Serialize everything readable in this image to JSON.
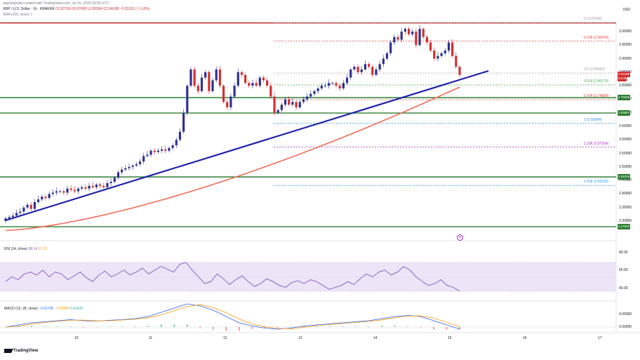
{
  "header": {
    "author_line": "aayushjindal created with TradingView.com, Jul 15, 2025 03:55 UTC",
    "symbol": "XRP / U.S. Dollar · 1h · KRAKEN",
    "ohlc": "O2.87159 H2.87430 L2.80364 C2.84188 −0.03162 (−1.10%)",
    "sma_label": "SMA (100, close)",
    "sma_value": "1",
    "currency": "USD"
  },
  "colors": {
    "up": "#2e3192",
    "down": "#d32f2f",
    "trendline": "#1e22aa",
    "sma": "#ef6c57",
    "support": "#2e7d32",
    "resistance": "#b71c1c",
    "fib": "#e53935",
    "rsi": "#7e57c2",
    "rsi_band": "#e9e0f5"
  },
  "price_axis": {
    "ticks": [
      "3.00000",
      "2.95000",
      "2.90000",
      "2.85000",
      "2.80000",
      "2.75000",
      "2.70000",
      "2.65000",
      "2.60000",
      "2.55000",
      "2.50000",
      "2.45000",
      "2.40000",
      "2.35000",
      "2.30000"
    ],
    "tags": [
      {
        "text": "2.84188",
        "color": "#d32f2f",
        "price": 2.84188
      },
      {
        "text": "04:05",
        "color": "#d32f2f",
        "price": 2.826
      },
      {
        "text": "2.75605",
        "color": "#2e7d32",
        "price": 2.75605
      },
      {
        "text": "2.69887",
        "color": "#2e7d32",
        "price": 2.69887
      },
      {
        "text": "2.46346",
        "color": "#2e7d32",
        "price": 2.46346
      },
      {
        "text": "2.27932",
        "color": "#2e7d32",
        "price": 2.27932
      }
    ]
  },
  "fib_levels": [
    {
      "label": "0 (3.03244)",
      "value": 3.03244
    },
    {
      "label": "0.236 (2.96474)",
      "value": 2.96474
    },
    {
      "label": "0.5 (2.84664)",
      "value": 2.84664
    },
    {
      "label": "0.618 (2.80279)",
      "value": 2.80279
    },
    {
      "label": "0.764 (2.74854)",
      "value": 2.74854
    },
    {
      "label": "1 (2.66084)",
      "value": 2.66084
    },
    {
      "label": "1.236 (2.57314)",
      "value": 2.57314
    },
    {
      "label": "1.618 (2.43119)",
      "value": 2.43119
    }
  ],
  "horizontal_levels": [
    {
      "name": "resistance",
      "value": 3.032
    },
    {
      "name": "support",
      "value": 2.756
    },
    {
      "name": "support",
      "value": 2.699
    },
    {
      "name": "support",
      "value": 2.463
    },
    {
      "name": "support",
      "value": 2.279
    }
  ],
  "rsi": {
    "label": "RSI (14, close)",
    "value": "38.14",
    "value2": "51.03",
    "ticks": [
      "80.00",
      "60.00",
      "40.00"
    ]
  },
  "macd": {
    "label": "MACD (12, 26, close)",
    "v1": "−0.01736",
    "v2": "−0.00260",
    "v3": "0.01476",
    "ticks": [
      "0.05000",
      "0.00000"
    ]
  },
  "time_axis": [
    "10",
    "11",
    "12",
    "13",
    "14",
    "15",
    "16",
    "17"
  ],
  "footer": {
    "brand": "TradingView"
  },
  "chart_data": {
    "type": "candlestick",
    "symbol": "XRP / U.S. Dollar",
    "interval": "1h",
    "y_range": [
      2.24,
      3.05
    ],
    "closes": [
      2.31,
      2.315,
      2.32,
      2.33,
      2.335,
      2.35,
      2.36,
      2.345,
      2.37,
      2.38,
      2.39,
      2.385,
      2.4,
      2.405,
      2.41,
      2.41,
      2.405,
      2.42,
      2.415,
      2.41,
      2.42,
      2.425,
      2.42,
      2.43,
      2.425,
      2.435,
      2.43,
      2.425,
      2.44,
      2.445,
      2.46,
      2.48,
      2.49,
      2.495,
      2.5,
      2.505,
      2.51,
      2.52,
      2.54,
      2.545,
      2.56,
      2.555,
      2.56,
      2.565,
      2.56,
      2.57,
      2.58,
      2.6,
      2.63,
      2.7,
      2.8,
      2.86,
      2.8,
      2.78,
      2.83,
      2.85,
      2.78,
      2.82,
      2.86,
      2.8,
      2.74,
      2.72,
      2.76,
      2.8,
      2.85,
      2.84,
      2.81,
      2.8,
      2.81,
      2.8,
      2.83,
      2.82,
      2.8,
      2.76,
      2.7,
      2.71,
      2.73,
      2.75,
      2.73,
      2.74,
      2.72,
      2.74,
      2.75,
      2.76,
      2.77,
      2.78,
      2.79,
      2.8,
      2.8,
      2.81,
      2.81,
      2.8,
      2.79,
      2.81,
      2.83,
      2.86,
      2.87,
      2.85,
      2.86,
      2.88,
      2.87,
      2.84,
      2.86,
      2.88,
      2.9,
      2.92,
      2.96,
      2.98,
      2.97,
      3.0,
      3.01,
      2.99,
      3.0,
      2.95,
      3.01,
      2.98,
      2.96,
      2.93,
      2.9,
      2.91,
      2.92,
      2.93,
      2.96,
      2.91,
      2.87,
      2.84
    ]
  }
}
